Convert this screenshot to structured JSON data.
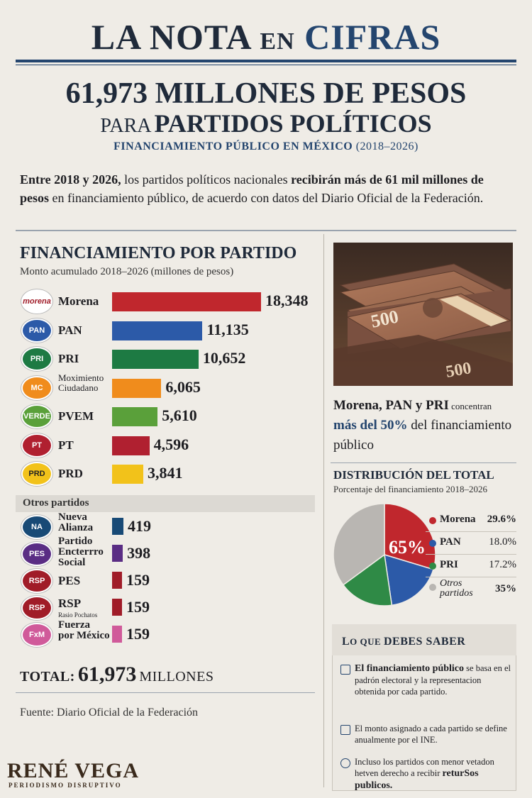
{
  "masthead": {
    "la_nota": "LA NOTA",
    "en": "EN",
    "cifras": "CIFRAS"
  },
  "headline": "61,973 MILLONES DE PESOS",
  "subhead": {
    "para": "PARA",
    "partidos": "PARTIDOS POLÍTICOS"
  },
  "kicker": {
    "main": "FINANCIAMIENTO PÚBLICO EN MÉXICO",
    "years": "(2018–2026)"
  },
  "intro": {
    "p1": "Entre 2018 y 2026,",
    "p2": " los partidos políticos nacionales ",
    "p3": "recibirán más de 61 mil millones de pesos",
    "p4": " en financiamiento público, de acuerdo con datos del Diario Oficial de la Federación."
  },
  "section": {
    "title": "FINANCIAMIENTO POR PARTIDO",
    "subtitle": "Monto acumulado 2018–2026 (millones de pesos)"
  },
  "others_label": "Otros partidos",
  "chart_data": [
    {
      "type": "bar",
      "orientation": "horizontal",
      "title": "FINANCIAMIENTO POR PARTIDO",
      "subtitle": "Monto acumulado 2018–2026 (millones de pesos)",
      "categories": [
        "Morena",
        "PAN",
        "PRI",
        "Moximiento Ciudadano",
        "PVEM",
        "PT",
        "PRD",
        "Nueva Alianza",
        "Partido Encterrro Social",
        "PES",
        "RSP",
        "Fuerza por México"
      ],
      "values": [
        18348,
        11135,
        10652,
        6065,
        5610,
        4596,
        3841,
        419,
        398,
        159,
        159,
        159
      ],
      "value_labels": [
        "18,348",
        "11,135",
        "10,652",
        "6,065",
        "5,610",
        "4,596",
        "3,841",
        "419",
        "398",
        "159",
        "159",
        "159"
      ],
      "colors": [
        "#c0272d",
        "#2c5aa8",
        "#1d7a43",
        "#f08c1c",
        "#5aa03a",
        "#b02030",
        "#f2c21a",
        "#184a76",
        "#5a2d84",
        "#a01c28",
        "#a01c28",
        "#d05a9a"
      ],
      "logo_text": [
        "morena",
        "PAN",
        "PRI",
        "MC",
        "VERDE",
        "PT",
        "PRD",
        "NA",
        "PES",
        "RSP",
        "RSP",
        "FxM"
      ],
      "sub_labels": [
        "",
        "",
        "",
        "",
        "",
        "",
        "",
        "",
        "",
        "",
        "Rasio Pochatos",
        ""
      ],
      "groups": {
        "main": [
          0,
          6
        ],
        "otros": [
          7,
          11
        ]
      }
    },
    {
      "type": "pie",
      "title": "DISTRIBUCIÓN DEL TOTAL",
      "subtitle": "Porcentaje del financiamiento 2018–2026",
      "center_label": "65%",
      "slices": [
        {
          "name": "Morena",
          "value": 29.6,
          "label": "29.6%",
          "color": "#c0272d"
        },
        {
          "name": "PAN",
          "value": 18.0,
          "label": "18.0%",
          "color": "#2c5aa8"
        },
        {
          "name": "PRI",
          "value": 17.2,
          "label": "17.2%",
          "color": "#2f8a46"
        },
        {
          "name": "Otros partidos",
          "value": 35,
          "label": "35%",
          "color": "#b9b6b2"
        }
      ]
    }
  ],
  "total": {
    "label": "TOTAL:",
    "value": "61,973",
    "unit": "MILLONES"
  },
  "source": "Fuente: Diario Oficial de la Federación",
  "brand": {
    "name": "RENÉ VEGA",
    "tagline": "PERIODISMO DISRUPTIVO"
  },
  "photo": {
    "note_value": "500"
  },
  "callout": {
    "c1": "Morena, PAN y PRI",
    "c2": " concentran ",
    "c3": "más del 50%",
    "c4": " del financiamiento público"
  },
  "box": {
    "title_a": "L",
    "title_b": "O QUE ",
    "title_c": "DEBES SABER",
    "items": [
      {
        "bold": "El financiamiento público",
        "text": " se basa en el padrón electoral y la representacion obtenida por cada partido."
      },
      {
        "bold": "",
        "text": "El monto asignado a cada partido se define anualmente por el INE."
      },
      {
        "bold": "",
        "text": "Incluso los partidos con menor vetadon hetven derecho a recibir ",
        "bold2": "returSos publicos."
      }
    ]
  },
  "colors": {
    "navy": "#24456e",
    "ink": "#1f2a3a",
    "paper": "#efece6"
  }
}
